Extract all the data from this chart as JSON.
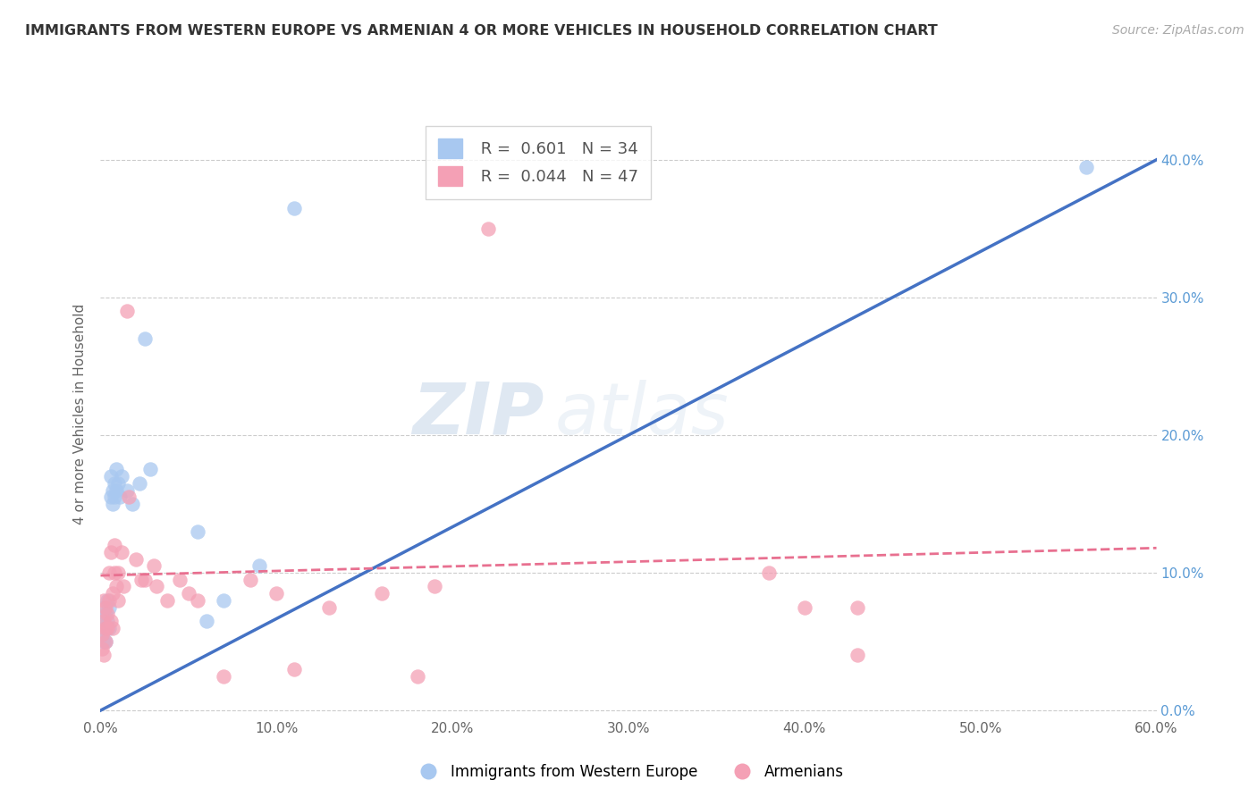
{
  "title": "IMMIGRANTS FROM WESTERN EUROPE VS ARMENIAN 4 OR MORE VEHICLES IN HOUSEHOLD CORRELATION CHART",
  "source": "Source: ZipAtlas.com",
  "ylabel": "4 or more Vehicles in Household",
  "legend_label1": "Immigrants from Western Europe",
  "legend_label2": "Armenians",
  "r1": 0.601,
  "n1": 34,
  "r2": 0.044,
  "n2": 47,
  "xlim": [
    0.0,
    0.6
  ],
  "ylim": [
    -0.005,
    0.435
  ],
  "xticks": [
    0.0,
    0.1,
    0.2,
    0.3,
    0.4,
    0.5,
    0.6
  ],
  "yticks": [
    0.0,
    0.1,
    0.2,
    0.3,
    0.4
  ],
  "color_blue": "#A8C8F0",
  "color_pink": "#F4A0B5",
  "line_blue": "#4472C4",
  "line_pink": "#E87090",
  "watermark_zip": "ZIP",
  "watermark_atlas": "atlas",
  "blue_scatter": [
    [
      0.001,
      0.065
    ],
    [
      0.001,
      0.055
    ],
    [
      0.002,
      0.075
    ],
    [
      0.002,
      0.06
    ],
    [
      0.002,
      0.05
    ],
    [
      0.003,
      0.07
    ],
    [
      0.003,
      0.06
    ],
    [
      0.003,
      0.05
    ],
    [
      0.004,
      0.08
    ],
    [
      0.004,
      0.065
    ],
    [
      0.005,
      0.075
    ],
    [
      0.005,
      0.06
    ],
    [
      0.006,
      0.155
    ],
    [
      0.006,
      0.17
    ],
    [
      0.007,
      0.16
    ],
    [
      0.007,
      0.15
    ],
    [
      0.008,
      0.165
    ],
    [
      0.008,
      0.155
    ],
    [
      0.009,
      0.175
    ],
    [
      0.009,
      0.16
    ],
    [
      0.01,
      0.165
    ],
    [
      0.011,
      0.155
    ],
    [
      0.012,
      0.17
    ],
    [
      0.015,
      0.16
    ],
    [
      0.018,
      0.15
    ],
    [
      0.022,
      0.165
    ],
    [
      0.025,
      0.27
    ],
    [
      0.028,
      0.175
    ],
    [
      0.055,
      0.13
    ],
    [
      0.06,
      0.065
    ],
    [
      0.07,
      0.08
    ],
    [
      0.09,
      0.105
    ],
    [
      0.11,
      0.365
    ],
    [
      0.56,
      0.395
    ]
  ],
  "pink_scatter": [
    [
      0.001,
      0.055
    ],
    [
      0.001,
      0.045
    ],
    [
      0.002,
      0.065
    ],
    [
      0.002,
      0.08
    ],
    [
      0.002,
      0.04
    ],
    [
      0.003,
      0.075
    ],
    [
      0.003,
      0.06
    ],
    [
      0.003,
      0.05
    ],
    [
      0.004,
      0.06
    ],
    [
      0.004,
      0.07
    ],
    [
      0.005,
      0.1
    ],
    [
      0.005,
      0.08
    ],
    [
      0.006,
      0.065
    ],
    [
      0.006,
      0.115
    ],
    [
      0.007,
      0.085
    ],
    [
      0.007,
      0.06
    ],
    [
      0.008,
      0.1
    ],
    [
      0.008,
      0.12
    ],
    [
      0.009,
      0.09
    ],
    [
      0.01,
      0.08
    ],
    [
      0.01,
      0.1
    ],
    [
      0.012,
      0.115
    ],
    [
      0.013,
      0.09
    ],
    [
      0.015,
      0.29
    ],
    [
      0.016,
      0.155
    ],
    [
      0.02,
      0.11
    ],
    [
      0.023,
      0.095
    ],
    [
      0.025,
      0.095
    ],
    [
      0.03,
      0.105
    ],
    [
      0.032,
      0.09
    ],
    [
      0.038,
      0.08
    ],
    [
      0.045,
      0.095
    ],
    [
      0.05,
      0.085
    ],
    [
      0.055,
      0.08
    ],
    [
      0.07,
      0.025
    ],
    [
      0.085,
      0.095
    ],
    [
      0.1,
      0.085
    ],
    [
      0.11,
      0.03
    ],
    [
      0.13,
      0.075
    ],
    [
      0.16,
      0.085
    ],
    [
      0.18,
      0.025
    ],
    [
      0.19,
      0.09
    ],
    [
      0.22,
      0.35
    ],
    [
      0.38,
      0.1
    ],
    [
      0.4,
      0.075
    ],
    [
      0.43,
      0.075
    ],
    [
      0.43,
      0.04
    ]
  ],
  "blue_line_x": [
    0.0,
    0.6
  ],
  "blue_line_y": [
    0.0,
    0.4
  ],
  "pink_line_x": [
    0.0,
    0.6
  ],
  "pink_line_y": [
    0.098,
    0.118
  ]
}
